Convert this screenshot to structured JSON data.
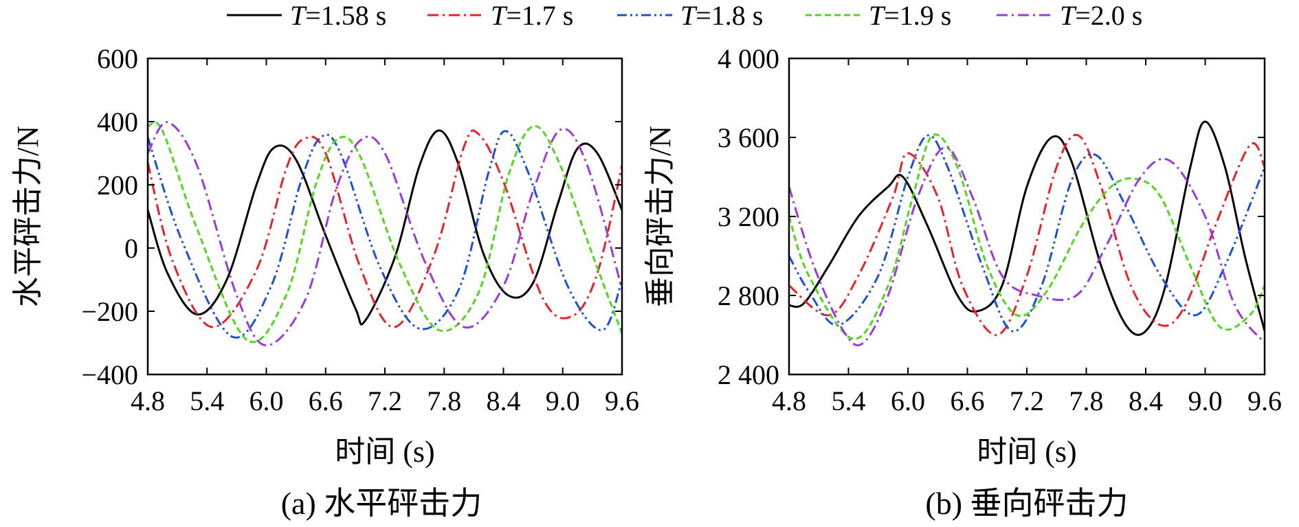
{
  "legend": {
    "entries": [
      {
        "label": "T=1.58 s",
        "italic": "T",
        "rest": "=1.58 s",
        "color": "#000000",
        "dash": "solid"
      },
      {
        "label": "T=1.7 s",
        "italic": "T",
        "rest": "=1.7 s",
        "color": "#e8202a",
        "dash": "dashdot"
      },
      {
        "label": "T=1.8 s",
        "italic": "T",
        "rest": "=1.8 s",
        "color": "#1a4fd6",
        "dash": "dashdotdot"
      },
      {
        "label": "T=1.9 s",
        "italic": "T",
        "rest": "=1.9 s",
        "color": "#4ed81c",
        "dash": "dashed"
      },
      {
        "label": "T=2.0 s",
        "italic": "T",
        "rest": "=2.0 s",
        "color": "#9b38e0",
        "dash": "dashdot"
      }
    ]
  },
  "chart_data": [
    {
      "type": "line",
      "caption": "(a) 水平砰击力",
      "xlabel": "时间 (s)",
      "ylabel": "水平砰击力/N",
      "xlim": [
        4.8,
        9.6
      ],
      "ylim": [
        -400,
        600
      ],
      "xticks": [
        "4.8",
        "5.4",
        "6.0",
        "6.6",
        "7.2",
        "7.8",
        "8.4",
        "9.0",
        "9.6"
      ],
      "yticks": [
        "600",
        "400",
        "200",
        "0",
        "−200",
        "−400"
      ],
      "series": [
        {
          "name": "T=1.58 s",
          "x": [
            4.8,
            5.0,
            5.3,
            5.6,
            5.9,
            6.08,
            6.3,
            6.6,
            6.9,
            7.0,
            7.3,
            7.55,
            7.75,
            7.95,
            8.2,
            8.45,
            8.7,
            8.95,
            9.15,
            9.35,
            9.6
          ],
          "y": [
            120,
            -80,
            -210,
            -100,
            200,
            318,
            280,
            40,
            -190,
            -230,
            -30,
            260,
            372,
            260,
            -20,
            -150,
            -110,
            140,
            315,
            300,
            120
          ]
        },
        {
          "name": "T=1.7 s",
          "x": [
            4.8,
            5.05,
            5.45,
            5.9,
            6.2,
            6.38,
            6.6,
            6.95,
            7.3,
            7.7,
            8.0,
            8.15,
            8.4,
            8.8,
            9.1,
            9.35,
            9.6
          ],
          "y": [
            270,
            -40,
            -250,
            -70,
            250,
            345,
            300,
            -60,
            -250,
            -20,
            320,
            360,
            210,
            -160,
            -215,
            -80,
            260
          ]
        },
        {
          "name": "T=1.8 s",
          "x": [
            4.8,
            5.15,
            5.65,
            6.05,
            6.35,
            6.55,
            6.75,
            7.15,
            7.55,
            7.95,
            8.25,
            8.42,
            8.65,
            9.05,
            9.4,
            9.6
          ],
          "y": [
            350,
            20,
            -280,
            -120,
            210,
            350,
            300,
            -60,
            -255,
            -130,
            240,
            370,
            240,
            -120,
            -260,
            -100
          ]
        },
        {
          "name": "T=1.9 s",
          "x": [
            4.8,
            4.95,
            5.3,
            5.8,
            6.2,
            6.5,
            6.72,
            6.95,
            7.35,
            7.75,
            8.15,
            8.45,
            8.7,
            8.95,
            9.3,
            9.6
          ],
          "y": [
            385,
            370,
            60,
            -290,
            -150,
            200,
            345,
            290,
            -50,
            -260,
            -140,
            230,
            385,
            280,
            -20,
            -270
          ]
        },
        {
          "name": "T=2.0 s",
          "x": [
            4.8,
            5.0,
            5.3,
            5.7,
            6.0,
            6.4,
            6.7,
            6.95,
            7.2,
            7.6,
            8.0,
            8.4,
            8.7,
            8.98,
            9.25,
            9.6
          ],
          "y": [
            300,
            398,
            260,
            -150,
            -308,
            -160,
            180,
            340,
            300,
            -40,
            -250,
            -120,
            180,
            375,
            260,
            -130
          ]
        }
      ]
    },
    {
      "type": "line",
      "caption": "(b) 垂向砰击力",
      "xlabel": "时间 (s)",
      "ylabel": "垂向砰击力/N",
      "xlim": [
        4.8,
        9.6
      ],
      "ylim": [
        2400,
        4000
      ],
      "xticks": [
        "4.8",
        "5.4",
        "6.0",
        "6.6",
        "7.2",
        "7.8",
        "8.4",
        "9.0",
        "9.6"
      ],
      "yticks": [
        "4 000",
        "3 600",
        "3 200",
        "2 800",
        "2 400"
      ],
      "series": [
        {
          "name": "T=1.58 s",
          "x": [
            4.8,
            4.95,
            5.2,
            5.5,
            5.8,
            5.95,
            6.2,
            6.5,
            6.7,
            6.95,
            7.2,
            7.45,
            7.65,
            7.95,
            8.2,
            8.4,
            8.6,
            8.85,
            9.0,
            9.2,
            9.4,
            9.6
          ],
          "y": [
            2750,
            2760,
            2950,
            3200,
            3350,
            3400,
            3150,
            2800,
            2720,
            2850,
            3350,
            3600,
            3480,
            2950,
            2650,
            2620,
            2850,
            3450,
            3680,
            3450,
            3000,
            2620
          ]
        },
        {
          "name": "T=1.7 s",
          "x": [
            4.8,
            5.2,
            5.5,
            5.85,
            6.0,
            6.3,
            6.55,
            6.9,
            7.2,
            7.5,
            7.72,
            7.95,
            8.25,
            8.55,
            8.8,
            9.1,
            9.45,
            9.6
          ],
          "y": [
            2850,
            2700,
            2900,
            3300,
            3520,
            3300,
            2850,
            2600,
            2900,
            3450,
            3610,
            3350,
            2850,
            2650,
            2750,
            3150,
            3560,
            3450
          ]
        },
        {
          "name": "T=1.8 s",
          "x": [
            4.8,
            5.0,
            5.3,
            5.7,
            6.0,
            6.2,
            6.4,
            6.75,
            7.05,
            7.35,
            7.65,
            7.9,
            8.2,
            8.55,
            8.9,
            9.2,
            9.6
          ],
          "y": [
            3000,
            2820,
            2650,
            2900,
            3400,
            3610,
            3450,
            2950,
            2620,
            2850,
            3380,
            3510,
            3250,
            2900,
            2700,
            2950,
            3450
          ]
        },
        {
          "name": "T=1.9 s",
          "x": [
            4.8,
            5.0,
            5.45,
            5.8,
            6.05,
            6.25,
            6.5,
            6.8,
            7.1,
            7.4,
            7.75,
            8.05,
            8.3,
            8.55,
            8.85,
            9.15,
            9.45,
            9.6
          ],
          "y": [
            3200,
            2900,
            2580,
            2850,
            3300,
            3610,
            3450,
            2950,
            2700,
            2820,
            3150,
            3350,
            3390,
            3300,
            2950,
            2640,
            2700,
            2850
          ]
        },
        {
          "name": "T=2.0 s",
          "x": [
            4.8,
            5.05,
            5.35,
            5.55,
            5.8,
            6.1,
            6.38,
            6.65,
            6.95,
            7.3,
            7.7,
            8.0,
            8.35,
            8.65,
            9.0,
            9.3,
            9.6
          ],
          "y": [
            3350,
            2950,
            2620,
            2560,
            2800,
            3300,
            3550,
            3300,
            2900,
            2800,
            2800,
            3050,
            3400,
            3480,
            3200,
            2750,
            2560
          ]
        }
      ]
    }
  ]
}
